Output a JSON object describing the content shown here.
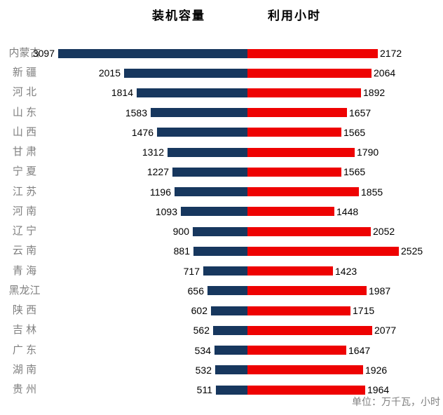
{
  "titles": {
    "left": "装机容量",
    "right": "利用小时"
  },
  "footer": {
    "unit_note": "单位：万千瓦，小时"
  },
  "colors": {
    "capacity_bar": "#17375E",
    "hours_bar": "#EE0202",
    "label_gray": "#808080",
    "value_text": "#000000"
  },
  "chart_data": {
    "type": "bar",
    "variant": "tornado-bidirectional-horizontal",
    "title": "",
    "unit_note": "单位：万千瓦，小时",
    "legend_position": "top",
    "grid": false,
    "categories": [
      "内蒙古",
      "新 疆",
      "河 北",
      "山 东",
      "山 西",
      "甘 肃",
      "宁 夏",
      "江 苏",
      "河 南",
      "辽 宁",
      "云 南",
      "青 海",
      "黑龙江",
      "陕 西",
      "吉 林",
      "广 东",
      "湖 南",
      "贵 州"
    ],
    "series": [
      {
        "name": "装机容量",
        "side": "left",
        "color": "#17375E",
        "values": [
          3097,
          2015,
          1814,
          1583,
          1476,
          1312,
          1227,
          1196,
          1093,
          900,
          881,
          717,
          656,
          602,
          562,
          534,
          532,
          511
        ]
      },
      {
        "name": "利用小时",
        "side": "right",
        "color": "#EE0202",
        "values": [
          2172,
          2064,
          1892,
          1657,
          1565,
          1790,
          1565,
          1855,
          1448,
          2052,
          2525,
          1423,
          1987,
          1715,
          2077,
          1647,
          1926,
          1964
        ]
      }
    ]
  }
}
